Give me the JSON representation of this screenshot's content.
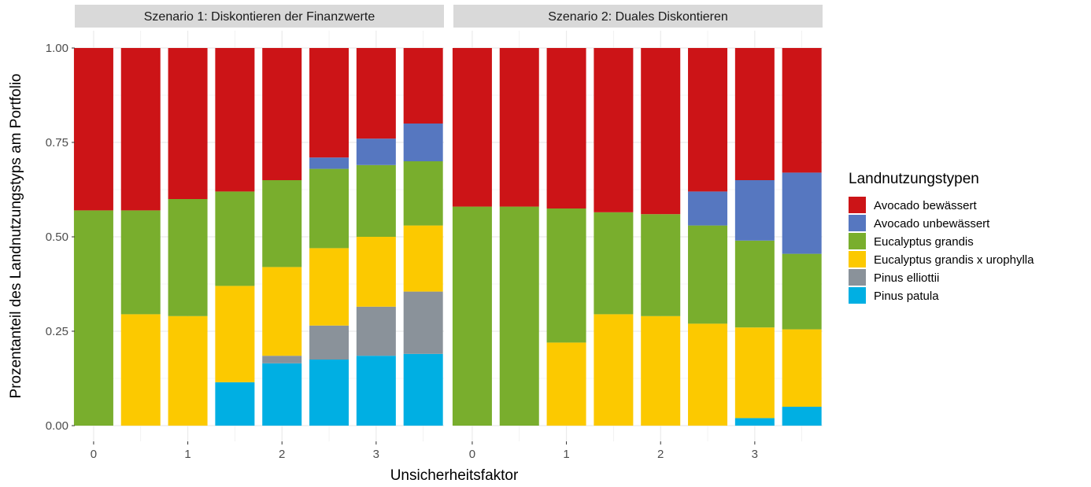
{
  "chart_data": {
    "type": "bar",
    "stacked": true,
    "xlabel": "Unsicherheitsfaktor",
    "ylabel": "Prozentanteil des Landnutzungstyps am Portfolio",
    "ylim": [
      0,
      1
    ],
    "y_ticks": [
      "0.00",
      "0.25",
      "0.50",
      "0.75",
      "1.00"
    ],
    "x_tick_labels": [
      "0",
      "1",
      "2",
      "3"
    ],
    "x_values": [
      0,
      0.5,
      1,
      1.5,
      2,
      2.5,
      3,
      3.5
    ],
    "x_range": [
      -0.2,
      3.72
    ],
    "grid": true,
    "legend": {
      "title": "Landnutzungstypen",
      "position": "right",
      "entries": [
        {
          "name": "Avocado bewässert",
          "color": "#cc1417"
        },
        {
          "name": "Avocado unbewässert",
          "color": "#5677c0"
        },
        {
          "name": "Eucalyptus grandis",
          "color": "#79ae2d"
        },
        {
          "name": "Eucalyptus grandis x urophylla",
          "color": "#fcc900"
        },
        {
          "name": "Pinus elliottii",
          "color": "#8a929a"
        },
        {
          "name": "Pinus patula",
          "color": "#00afe3"
        }
      ]
    },
    "stack_order_bottom_to_top": [
      "Pinus patula",
      "Pinus elliottii",
      "Eucalyptus grandis x urophylla",
      "Eucalyptus grandis",
      "Avocado unbewässert",
      "Avocado bewässert"
    ],
    "panels": [
      {
        "title": "Szenario 1: Diskontieren der Finanzwerte",
        "series": [
          {
            "name": "Avocado bewässert",
            "values": [
              0.43,
              0.43,
              0.4,
              0.38,
              0.35,
              0.29,
              0.24,
              0.2
            ]
          },
          {
            "name": "Avocado unbewässert",
            "values": [
              0,
              0,
              0,
              0,
              0,
              0.03,
              0.07,
              0.1
            ]
          },
          {
            "name": "Eucalyptus grandis",
            "values": [
              0.57,
              0.275,
              0.31,
              0.25,
              0.23,
              0.21,
              0.19,
              0.17
            ]
          },
          {
            "name": "Eucalyptus grandis x urophylla",
            "values": [
              0,
              0.295,
              0.29,
              0.255,
              0.235,
              0.205,
              0.185,
              0.175
            ]
          },
          {
            "name": "Pinus elliottii",
            "values": [
              0,
              0,
              0,
              0,
              0.02,
              0.09,
              0.13,
              0.165
            ]
          },
          {
            "name": "Pinus patula",
            "values": [
              0,
              0,
              0,
              0.115,
              0.165,
              0.175,
              0.185,
              0.19
            ]
          }
        ]
      },
      {
        "title": "Szenario 2: Duales Diskontieren",
        "series": [
          {
            "name": "Avocado bewässert",
            "values": [
              0.42,
              0.42,
              0.425,
              0.435,
              0.44,
              0.38,
              0.35,
              0.33
            ]
          },
          {
            "name": "Avocado unbewässert",
            "values": [
              0,
              0,
              0,
              0,
              0,
              0.09,
              0.16,
              0.215
            ]
          },
          {
            "name": "Eucalyptus grandis",
            "values": [
              0.58,
              0.58,
              0.355,
              0.27,
              0.27,
              0.26,
              0.23,
              0.2
            ]
          },
          {
            "name": "Eucalyptus grandis x urophylla",
            "values": [
              0,
              0,
              0.22,
              0.295,
              0.29,
              0.27,
              0.24,
              0.205
            ]
          },
          {
            "name": "Pinus elliottii",
            "values": [
              0,
              0,
              0,
              0,
              0,
              0,
              0,
              0
            ]
          },
          {
            "name": "Pinus patula",
            "values": [
              0,
              0,
              0,
              0,
              0,
              0,
              0.02,
              0.05
            ]
          }
        ]
      }
    ]
  }
}
